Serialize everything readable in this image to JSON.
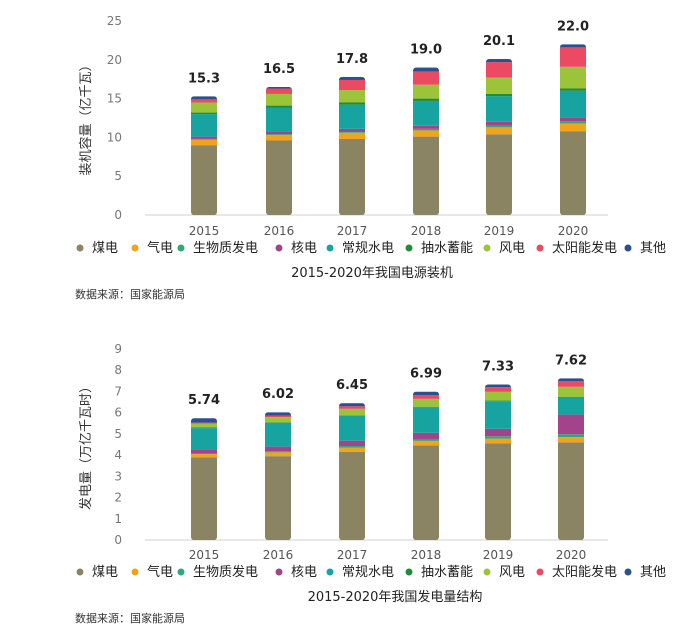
{
  "charts": [
    {
      "type": "stacked-bar",
      "ylabel": "装机容量（亿千瓦）",
      "ylim": [
        0,
        25
      ],
      "yticks": [
        0,
        5,
        10,
        15,
        20,
        25
      ],
      "categories": [
        "2015",
        "2016",
        "2017",
        "2018",
        "2019",
        "2020"
      ],
      "totals": [
        "15.3",
        "16.5",
        "17.8",
        "19.0",
        "20.1",
        "22.0"
      ],
      "series": [
        {
          "name": "煤电",
          "color": "#8a8462",
          "values": [
            9.0,
            9.6,
            9.8,
            10.1,
            10.4,
            10.8
          ]
        },
        {
          "name": "气电",
          "color": "#f0a31b",
          "values": [
            0.7,
            0.7,
            0.8,
            0.8,
            0.9,
            1.0
          ]
        },
        {
          "name": "生物质发电",
          "color": "#2eaa78",
          "values": [
            0.1,
            0.1,
            0.1,
            0.2,
            0.2,
            0.3
          ]
        },
        {
          "name": "核电",
          "color": "#a2438c",
          "values": [
            0.3,
            0.3,
            0.4,
            0.4,
            0.5,
            0.5
          ]
        },
        {
          "name": "常规水电",
          "color": "#17a3a0",
          "values": [
            2.9,
            3.1,
            3.1,
            3.2,
            3.3,
            3.4
          ]
        },
        {
          "name": "抽水蓄能",
          "color": "#1e8c3a",
          "values": [
            0.2,
            0.3,
            0.3,
            0.3,
            0.3,
            0.3
          ]
        },
        {
          "name": "风电",
          "color": "#9cc43a",
          "values": [
            1.3,
            1.5,
            1.6,
            1.8,
            2.1,
            2.8
          ]
        },
        {
          "name": "太阳能发电",
          "color": "#ec4a63",
          "values": [
            0.4,
            0.7,
            1.3,
            1.7,
            2.0,
            2.5
          ]
        },
        {
          "name": "其他",
          "color": "#2d4f8f",
          "values": [
            0.4,
            0.2,
            0.4,
            0.5,
            0.4,
            0.4
          ]
        }
      ],
      "title": "2015-2020年我国电源装机",
      "source": "数据来源：国家能源局"
    },
    {
      "type": "stacked-bar",
      "ylabel": "发电量（万亿千瓦时）",
      "ylim": [
        0,
        9
      ],
      "yticks": [
        0,
        1,
        2,
        3,
        4,
        5,
        6,
        7,
        8,
        9
      ],
      "categories": [
        "2015",
        "2016",
        "2017",
        "2018",
        "2019",
        "2020"
      ],
      "totals": [
        "5.74",
        "6.02",
        "6.45",
        "6.99",
        "7.33",
        "7.62"
      ],
      "series": [
        {
          "name": "煤电",
          "color": "#8a8462",
          "values": [
            3.9,
            3.95,
            4.15,
            4.45,
            4.55,
            4.6
          ]
        },
        {
          "name": "气电",
          "color": "#f0a31b",
          "values": [
            0.15,
            0.18,
            0.2,
            0.22,
            0.23,
            0.25
          ]
        },
        {
          "name": "生物质发电",
          "color": "#2eaa78",
          "values": [
            0.05,
            0.06,
            0.08,
            0.09,
            0.11,
            0.13
          ]
        },
        {
          "name": "核电",
          "color": "#a2438c",
          "values": [
            0.17,
            0.21,
            0.25,
            0.29,
            0.35,
            0.93
          ]
        },
        {
          "name": "常规水电",
          "color": "#17a3a0",
          "values": [
            1.0,
            1.12,
            1.17,
            1.2,
            1.3,
            0.8
          ]
        },
        {
          "name": "抽水蓄能",
          "color": "#1e8c3a",
          "values": [
            0.03,
            0.03,
            0.03,
            0.03,
            0.03,
            0.04
          ]
        },
        {
          "name": "风电",
          "color": "#9cc43a",
          "values": [
            0.19,
            0.24,
            0.3,
            0.37,
            0.41,
            0.47
          ]
        },
        {
          "name": "太阳能发电",
          "color": "#ec4a63",
          "values": [
            0.04,
            0.07,
            0.12,
            0.18,
            0.22,
            0.26
          ]
        },
        {
          "name": "其他",
          "color": "#2d4f8f",
          "values": [
            0.21,
            0.16,
            0.15,
            0.16,
            0.13,
            0.14
          ]
        }
      ],
      "title": "2015-2020年我国发电量结构",
      "source": "数据来源：国家能源局"
    }
  ]
}
